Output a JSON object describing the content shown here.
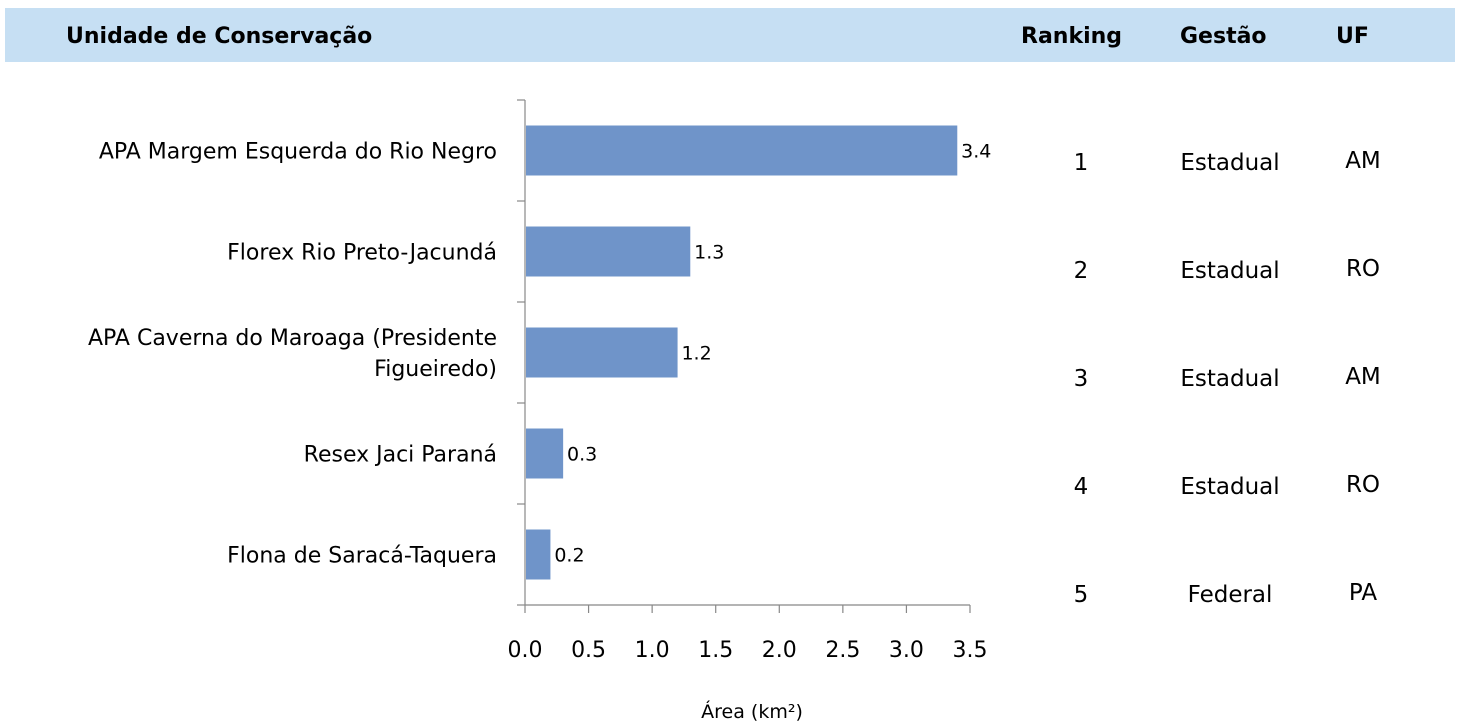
{
  "header": {
    "unit_label": "Unidade de Conservação",
    "ranking_label": "Ranking",
    "gestao_label": "Gestão",
    "uf_label": "UF"
  },
  "chart_data": {
    "type": "bar",
    "orientation": "horizontal",
    "categories": [
      "APA  Margem Esquerda do Rio Negro",
      "Florex  Rio Preto-Jacundá",
      "APA  Caverna do Maroaga (Presidente Figueiredo)",
      "Resex  Jaci Paraná",
      "Flona de Saracá-Taquera"
    ],
    "category_lines": [
      [
        "APA  Margem Esquerda do Rio Negro"
      ],
      [
        "Florex  Rio Preto-Jacundá"
      ],
      [
        "APA  Caverna do Maroaga (Presidente",
        "Figueiredo)"
      ],
      [
        "Resex  Jaci Paraná"
      ],
      [
        "Flona de Saracá-Taquera"
      ]
    ],
    "values": [
      3.4,
      1.3,
      1.2,
      0.3,
      0.2
    ],
    "value_labels": [
      "3.4",
      "1.3",
      "1.2",
      "0.3",
      "0.2"
    ],
    "xlim": [
      0,
      3.5
    ],
    "xticks": [
      "0.0",
      "0.5",
      "1.0",
      "1.5",
      "2.0",
      "2.5",
      "3.0",
      "3.5"
    ],
    "xlabel": "Área (km²)",
    "ylabel": "",
    "title": "",
    "bar_color": "#6f94c9",
    "grid": false
  },
  "table": {
    "rows": [
      {
        "ranking": "1",
        "gestao": "Estadual",
        "uf": "AM"
      },
      {
        "ranking": "2",
        "gestao": "Estadual",
        "uf": "RO"
      },
      {
        "ranking": "3",
        "gestao": "Estadual",
        "uf": "AM"
      },
      {
        "ranking": "4",
        "gestao": "Estadual",
        "uf": "RO"
      },
      {
        "ranking": "5",
        "gestao": "Federal",
        "uf": "PA"
      }
    ]
  }
}
